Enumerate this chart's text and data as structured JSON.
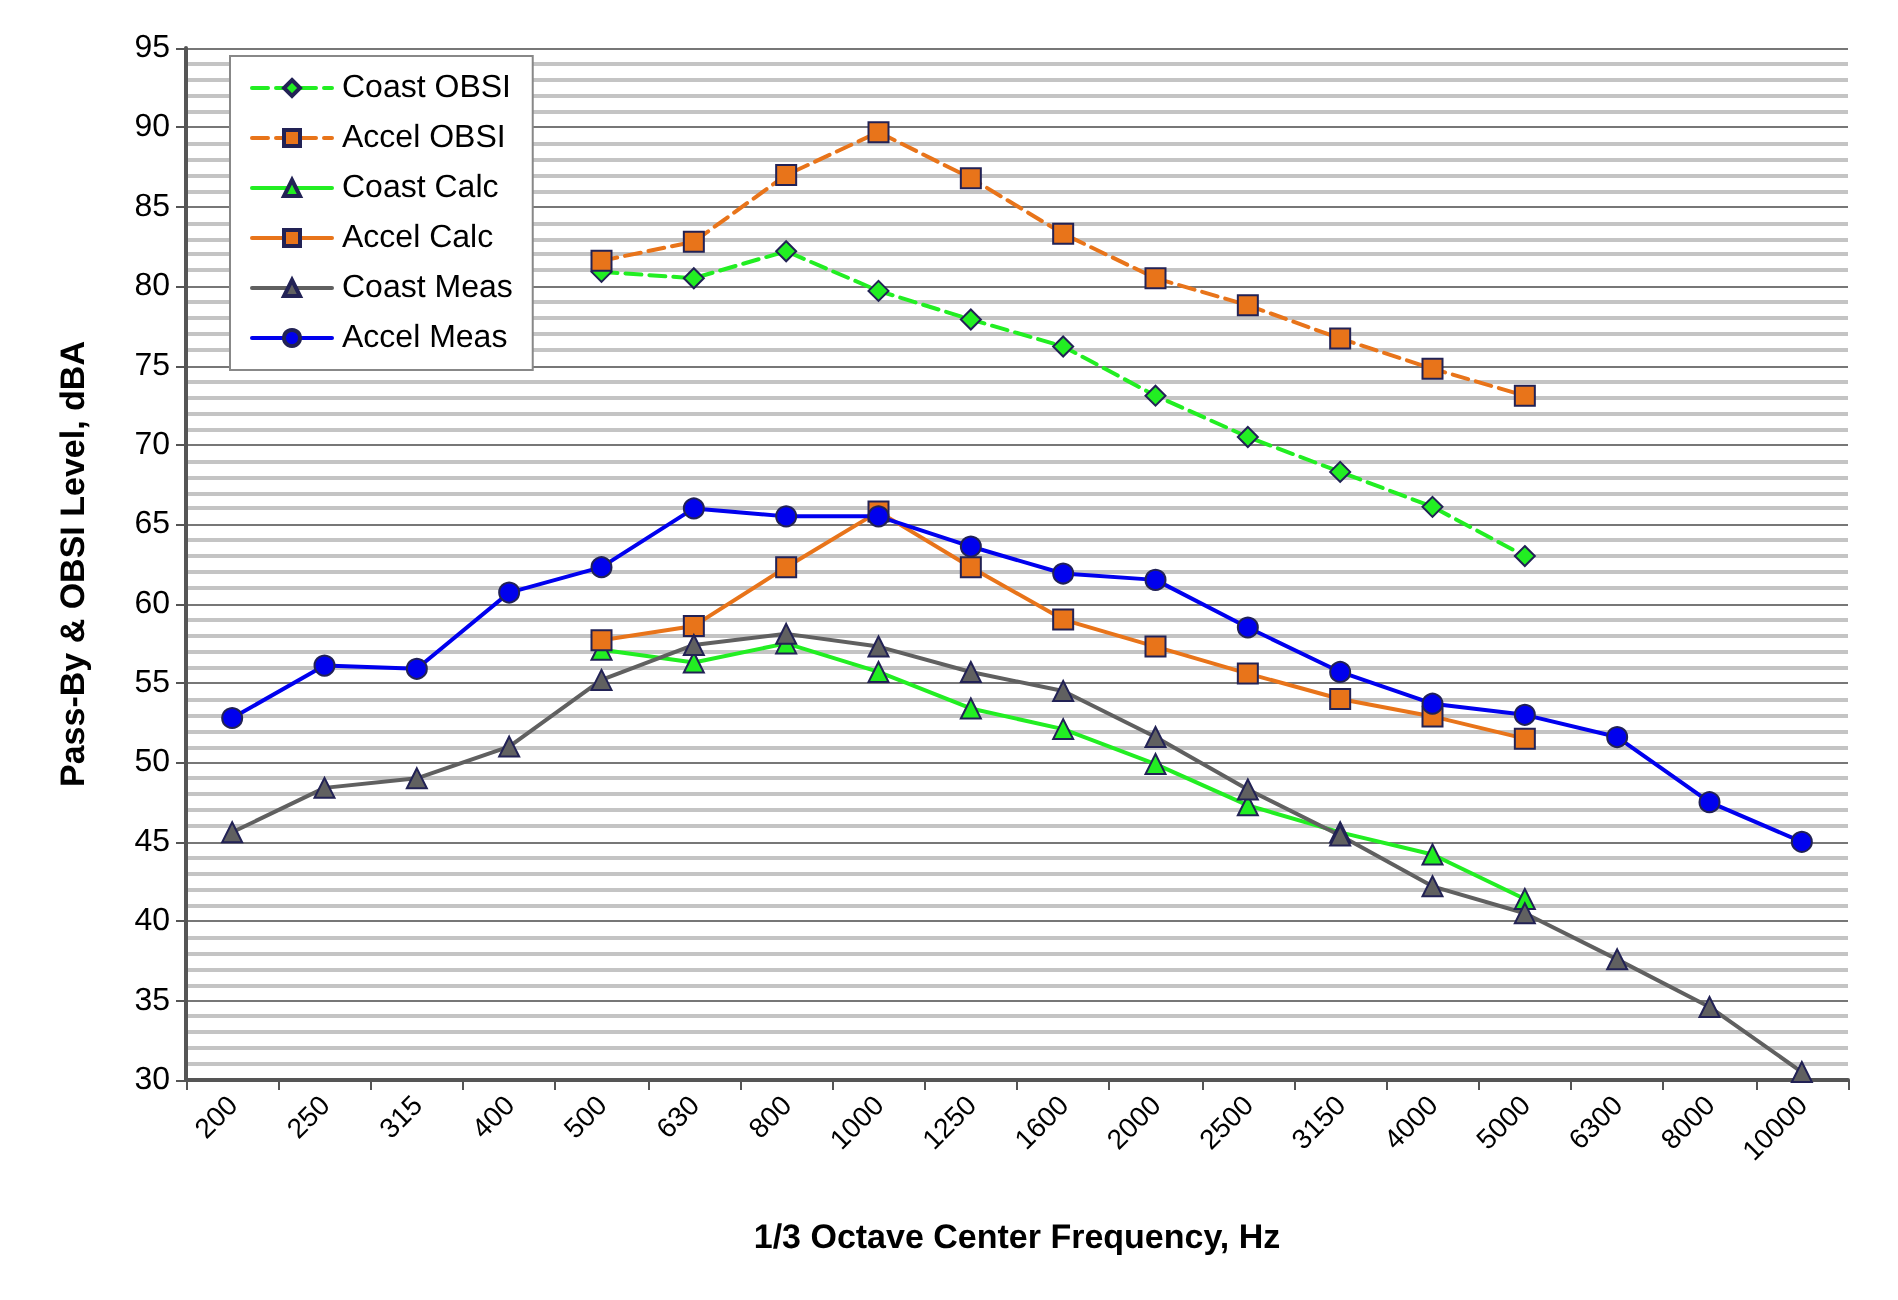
{
  "chart_data": {
    "type": "line",
    "xlabel": "1/3 Octave Center Frequency, Hz",
    "ylabel": "Pass-By & OBSI Level, dBA",
    "categories": [
      "200",
      "250",
      "315",
      "400",
      "500",
      "630",
      "800",
      "1000",
      "1250",
      "1600",
      "2000",
      "2500",
      "3150",
      "4000",
      "5000",
      "6300",
      "8000",
      "10000"
    ],
    "series": [
      {
        "name": "Coast OBSI",
        "color": "#22ee22",
        "marker": "diamond",
        "line_style": "dashed",
        "values": [
          null,
          null,
          null,
          null,
          80.9,
          80.5,
          82.2,
          79.7,
          77.9,
          76.2,
          73.1,
          70.5,
          68.3,
          66.1,
          63.0,
          null,
          null,
          null
        ]
      },
      {
        "name": "Accel OBSI",
        "color": "#e8741a",
        "marker": "square",
        "line_style": "dashed",
        "values": [
          null,
          null,
          null,
          null,
          81.6,
          82.8,
          87.0,
          89.7,
          86.8,
          83.3,
          80.5,
          78.8,
          76.7,
          74.8,
          73.1,
          null,
          null,
          null
        ]
      },
      {
        "name": "Coast Calc",
        "color": "#22ee22",
        "marker": "triangle",
        "line_style": "solid",
        "values": [
          null,
          null,
          null,
          null,
          57.1,
          56.3,
          57.5,
          55.7,
          53.4,
          52.1,
          49.9,
          47.3,
          45.6,
          44.2,
          41.4,
          null,
          null,
          null
        ]
      },
      {
        "name": "Accel Calc",
        "color": "#e8741a",
        "marker": "square",
        "line_style": "solid",
        "values": [
          null,
          null,
          null,
          null,
          57.7,
          58.6,
          62.3,
          65.8,
          62.3,
          59.0,
          57.3,
          55.6,
          54.0,
          52.9,
          51.5,
          null,
          null,
          null
        ]
      },
      {
        "name": "Coast Meas",
        "color": "#606060",
        "marker": "triangle",
        "line_style": "solid",
        "values": [
          45.6,
          48.4,
          49.0,
          51.0,
          55.2,
          57.4,
          58.1,
          57.3,
          55.7,
          54.5,
          51.6,
          48.3,
          45.4,
          42.2,
          40.5,
          37.6,
          34.6,
          30.5
        ]
      },
      {
        "name": "Accel Meas",
        "color": "#0000ee",
        "marker": "circle",
        "line_style": "solid",
        "values": [
          52.8,
          56.1,
          55.9,
          60.7,
          62.3,
          66.0,
          65.5,
          65.5,
          63.6,
          61.9,
          61.5,
          58.5,
          55.7,
          53.7,
          53.0,
          51.6,
          47.5,
          45.0
        ]
      }
    ],
    "ylim": [
      30,
      95
    ],
    "yticks": [
      30,
      35,
      40,
      45,
      50,
      55,
      60,
      65,
      70,
      75,
      80,
      85,
      90,
      95
    ],
    "grid": "y",
    "legend": "top left"
  }
}
